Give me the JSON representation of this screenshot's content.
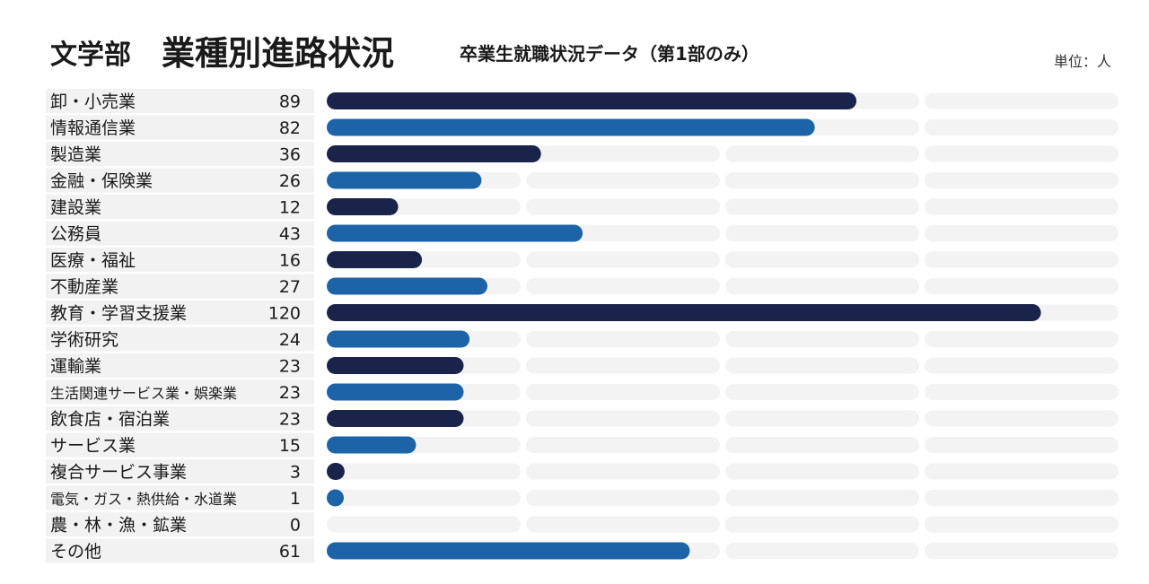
{
  "header": {
    "department": "文学部",
    "title": "業種別進路状況",
    "subtitle": "卒業生就職状況データ（第1部のみ）",
    "unit": "単位：人"
  },
  "colors": {
    "dark": "#1a2349",
    "blue": "#1c63a8",
    "track": "#f3f3f4",
    "label_bg": "#f2f2f2"
  },
  "chart_data": {
    "type": "bar",
    "orientation": "horizontal",
    "title": "業種別進路状況",
    "unit": "単位：人",
    "categories": [
      "卸・小売業",
      "情報通信業",
      "製造業",
      "金融・保険業",
      "建設業",
      "公務員",
      "医療・福祉",
      "不動産業",
      "教育・学習支援業",
      "学術研究",
      "運輸業",
      "生活関連サービス業・娯楽業",
      "飲食店・宿泊業",
      "サービス業",
      "複合サービス事業",
      "電気・ガス・熱供給・水道業",
      "農・林・漁・鉱業",
      "その他"
    ],
    "values": [
      89,
      82,
      36,
      26,
      12,
      43,
      16,
      27,
      120,
      24,
      23,
      23,
      23,
      15,
      3,
      1,
      0,
      61
    ],
    "xlim": [
      0,
      132
    ],
    "grid": true,
    "legend": "none"
  }
}
